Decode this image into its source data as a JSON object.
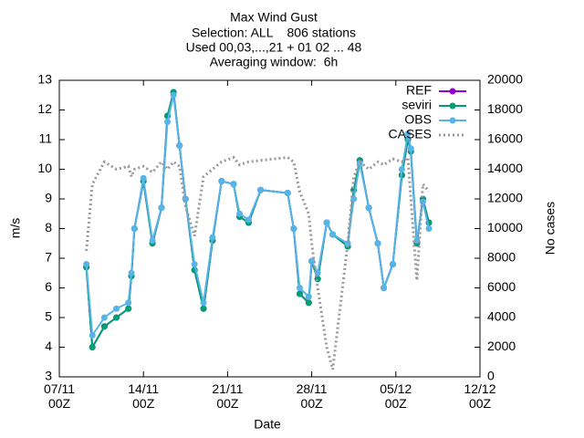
{
  "chart_data": {
    "type": "line",
    "title": "Max Wind Gust",
    "subtitle": [
      "Selection: ALL    806 stations",
      "Used 00,03,...,21 + 01 02 ... 48",
      "Averaging window:  6h"
    ],
    "xlabel": "Date",
    "ylabel": "m/s",
    "y2label": "No cases",
    "x": [
      "09/11 06Z",
      "09/11 18Z",
      "10/11 18Z",
      "11/11 18Z",
      "12/11 18Z",
      "13/11 00Z",
      "13/11 06Z",
      "14/11 00Z",
      "14/11 18Z",
      "15/11 12Z",
      "16/11 00Z",
      "16/11 12Z",
      "17/11 00Z",
      "17/11 12Z",
      "18/11 06Z",
      "19/11 00Z",
      "19/11 18Z",
      "20/11 12Z",
      "21/11 12Z",
      "22/11 00Z",
      "22/11 18Z",
      "23/11 18Z",
      "26/11 00Z",
      "26/11 12Z",
      "27/11 00Z",
      "27/11 18Z",
      "28/11 00Z",
      "28/11 12Z",
      "29/11 06Z",
      "29/11 18Z",
      "01/12 00Z",
      "01/12 12Z",
      "02/12 00Z",
      "02/12 18Z",
      "03/12 12Z",
      "04/12 00Z",
      "04/12 18Z",
      "05/12 12Z",
      "06/12 00Z",
      "06/12 06Z",
      "06/12 18Z",
      "07/12 06Z",
      "07/12 18Z"
    ],
    "series": [
      {
        "name": "REF",
        "color": "#9400d3",
        "marker": true,
        "values": [
          6.7,
          4.0,
          4.7,
          5.0,
          5.3,
          6.4,
          8.0,
          9.6,
          7.5,
          8.7,
          11.8,
          12.6,
          10.8,
          9.0,
          6.6,
          5.3,
          7.6,
          9.6,
          9.5,
          8.4,
          8.2,
          9.3,
          9.2,
          8.0,
          5.8,
          5.5,
          6.9,
          6.3,
          8.2,
          7.8,
          7.4,
          9.3,
          10.3,
          8.7,
          7.5,
          6.0,
          6.8,
          9.8,
          11.0,
          10.6,
          7.5,
          9.0,
          8.2
        ]
      },
      {
        "name": "seviri",
        "color": "#009e73",
        "marker": true,
        "values": [
          6.7,
          4.0,
          4.7,
          5.0,
          5.3,
          6.4,
          8.0,
          9.6,
          7.5,
          8.7,
          11.8,
          12.6,
          10.8,
          9.0,
          6.6,
          5.3,
          7.6,
          9.6,
          9.5,
          8.4,
          8.2,
          9.3,
          9.2,
          8.0,
          5.8,
          5.5,
          6.9,
          6.3,
          8.2,
          7.8,
          7.4,
          9.3,
          10.3,
          8.7,
          7.5,
          6.0,
          6.8,
          9.8,
          11.0,
          10.6,
          7.5,
          9.0,
          8.2
        ]
      },
      {
        "name": "OBS",
        "color": "#56b4e9",
        "marker": true,
        "values": [
          6.8,
          4.4,
          5.0,
          5.3,
          5.5,
          6.5,
          8.0,
          9.7,
          7.6,
          8.7,
          11.6,
          12.5,
          10.8,
          9.0,
          6.8,
          5.5,
          7.7,
          9.6,
          9.5,
          8.5,
          8.3,
          9.3,
          9.2,
          8.0,
          6.0,
          5.7,
          6.9,
          6.5,
          8.2,
          7.8,
          7.5,
          9.0,
          10.2,
          8.7,
          7.5,
          6.0,
          6.8,
          10.0,
          11.2,
          10.7,
          7.6,
          8.9,
          8.0
        ]
      },
      {
        "name": "CASES",
        "color": "#999999",
        "marker": false,
        "dotted": true,
        "axis": "y2",
        "values": [
          8500,
          13000,
          14500,
          14000,
          14200,
          13500,
          14000,
          14200,
          13800,
          14500,
          14000,
          14500,
          14200,
          11500,
          9500,
          13500,
          14000,
          14500,
          14800,
          14300,
          14500,
          14600,
          14800,
          14500,
          12500,
          11000,
          9000,
          6000,
          2000,
          500,
          9000,
          13500,
          14500,
          14000,
          14500,
          14300,
          14700,
          14500,
          14800,
          12000,
          6500,
          13000,
          12500
        ]
      }
    ],
    "xlim": [
      "07/11 00Z",
      "12/12 00Z"
    ],
    "xticks": [
      "07/11 00Z",
      "14/11 00Z",
      "21/11 00Z",
      "28/11 00Z",
      "05/12 00Z",
      "12/12 00Z"
    ],
    "ylim": [
      3,
      13
    ],
    "yticks": [
      3,
      4,
      5,
      6,
      7,
      8,
      9,
      10,
      11,
      12,
      13
    ],
    "y2lim": [
      0,
      20000
    ],
    "y2ticks": [
      0,
      2000,
      4000,
      6000,
      8000,
      10000,
      12000,
      14000,
      16000,
      18000,
      20000
    ],
    "grid": false,
    "legend": "top-right"
  }
}
